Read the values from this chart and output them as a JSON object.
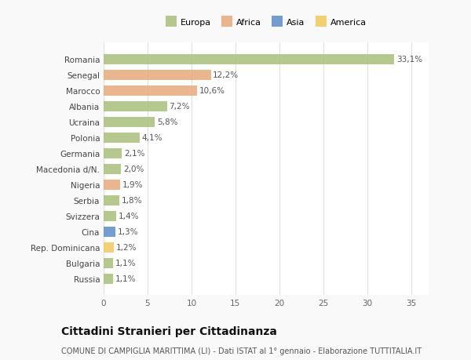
{
  "countries": [
    "Romania",
    "Senegal",
    "Marocco",
    "Albania",
    "Ucraina",
    "Polonia",
    "Germania",
    "Macedonia d/N.",
    "Nigeria",
    "Serbia",
    "Svizzera",
    "Cina",
    "Rep. Dominicana",
    "Bulgaria",
    "Russia"
  ],
  "values": [
    33.1,
    12.2,
    10.6,
    7.2,
    5.8,
    4.1,
    2.1,
    2.0,
    1.9,
    1.8,
    1.4,
    1.3,
    1.2,
    1.1,
    1.1
  ],
  "labels": [
    "33,1%",
    "12,2%",
    "10,6%",
    "7,2%",
    "5,8%",
    "4,1%",
    "2,1%",
    "2,0%",
    "1,9%",
    "1,8%",
    "1,4%",
    "1,3%",
    "1,2%",
    "1,1%",
    "1,1%"
  ],
  "continents": [
    "Europa",
    "Africa",
    "Africa",
    "Europa",
    "Europa",
    "Europa",
    "Europa",
    "Europa",
    "Africa",
    "Europa",
    "Europa",
    "Asia",
    "America",
    "Europa",
    "Europa"
  ],
  "colors": {
    "Europa": "#a8c07a",
    "Africa": "#e8a97a",
    "Asia": "#5b8dc9",
    "America": "#f0c85a"
  },
  "title": "Cittadini Stranieri per Cittadinanza",
  "subtitle": "COMUNE DI CAMPIGLIA MARITTIMA (LI) - Dati ISTAT al 1° gennaio - Elaborazione TUTTITALIA.IT",
  "xlim": [
    0,
    37
  ],
  "xticks": [
    0,
    5,
    10,
    15,
    20,
    25,
    30,
    35
  ],
  "background_color": "#f9f9f9",
  "plot_bg_color": "#ffffff",
  "grid_color": "#e0e0e0",
  "label_fontsize": 7.5,
  "ytick_fontsize": 7.5,
  "xtick_fontsize": 7.5,
  "title_fontsize": 10,
  "subtitle_fontsize": 7,
  "legend_fontsize": 8,
  "bar_height": 0.65,
  "bar_alpha": 0.85
}
